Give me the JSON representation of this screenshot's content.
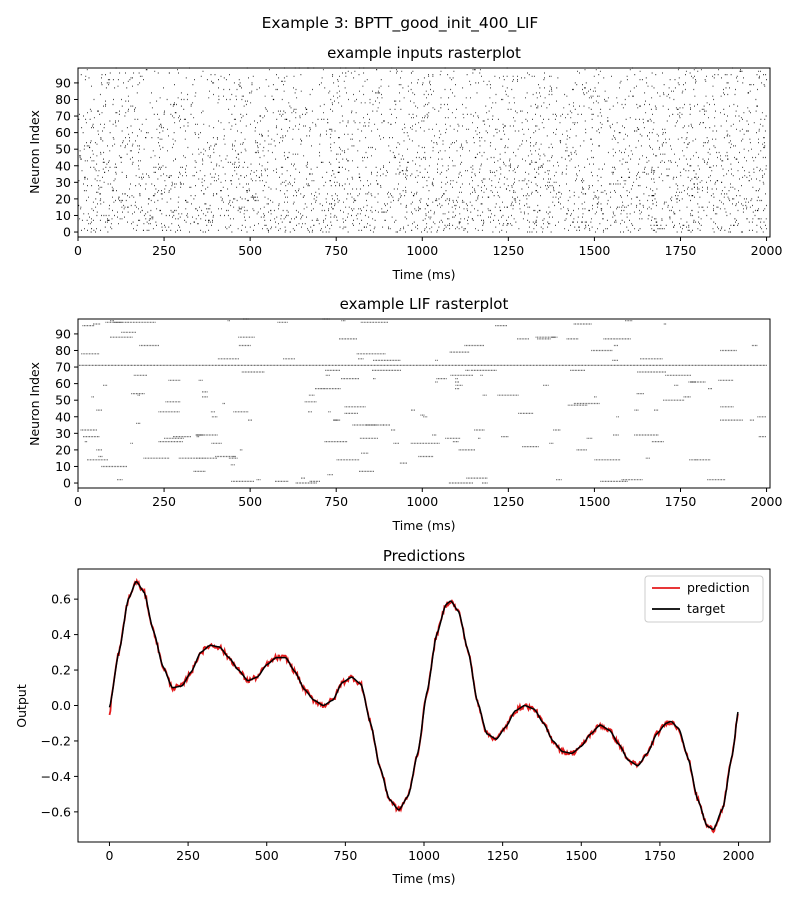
{
  "figure": {
    "suptitle": "Example 3: BPTT_good_init_400_LIF"
  },
  "chart_data": [
    {
      "type": "raster",
      "title": "example inputs rasterplot",
      "xlabel": "Time (ms)",
      "ylabel": "Neuron Index",
      "xlim": [
        0,
        2010
      ],
      "ylim": [
        -3,
        99
      ],
      "xticks": [
        0,
        250,
        500,
        750,
        1000,
        1250,
        1500,
        1750,
        2000
      ],
      "yticks": [
        0,
        10,
        20,
        30,
        40,
        50,
        60,
        70,
        80,
        90
      ],
      "neurons": 100,
      "description_of_marks": "random Poisson-like input spikes, density decreasing with neuron index",
      "mark_color": "#000000",
      "grid": false
    },
    {
      "type": "raster",
      "title": "example LIF rasterplot",
      "xlabel": "Time (ms)",
      "ylabel": "Neuron Index",
      "xlim": [
        0,
        2010
      ],
      "ylim": [
        -3,
        99
      ],
      "xticks": [
        0,
        250,
        500,
        750,
        1000,
        1250,
        1500,
        1750,
        2000
      ],
      "yticks": [
        0,
        10,
        20,
        30,
        40,
        50,
        60,
        70,
        80,
        90
      ],
      "neurons": 100,
      "continuous_neuron": 71,
      "mark_color": "#555555",
      "grid": false
    },
    {
      "type": "line",
      "title": "Predictions",
      "xlabel": "Time (ms)",
      "ylabel": "Output",
      "xlim": [
        -100,
        2100
      ],
      "ylim": [
        -0.77,
        0.77
      ],
      "xticks": [
        0,
        250,
        500,
        750,
        1000,
        1250,
        1500,
        1750,
        2000
      ],
      "yticks": [
        -0.6,
        -0.4,
        -0.2,
        0.0,
        0.2,
        0.4,
        0.6
      ],
      "ytick_labels": [
        "−0.6",
        "−0.4",
        "−0.2",
        "0.0",
        "0.2",
        "0.4",
        "0.6"
      ],
      "legend": "top-right",
      "grid": false,
      "series": [
        {
          "name": "prediction",
          "color": "#e41a1c"
        },
        {
          "name": "target",
          "color": "#000000"
        }
      ],
      "target_points": [
        [
          0,
          -0.01
        ],
        [
          30,
          0.3
        ],
        [
          60,
          0.6
        ],
        [
          85,
          0.7
        ],
        [
          110,
          0.64
        ],
        [
          140,
          0.42
        ],
        [
          170,
          0.22
        ],
        [
          200,
          0.1
        ],
        [
          230,
          0.11
        ],
        [
          260,
          0.19
        ],
        [
          290,
          0.3
        ],
        [
          320,
          0.34
        ],
        [
          350,
          0.33
        ],
        [
          380,
          0.27
        ],
        [
          410,
          0.2
        ],
        [
          440,
          0.14
        ],
        [
          470,
          0.16
        ],
        [
          500,
          0.23
        ],
        [
          530,
          0.27
        ],
        [
          560,
          0.27
        ],
        [
          590,
          0.19
        ],
        [
          620,
          0.09
        ],
        [
          650,
          0.03
        ],
        [
          680,
          0.0
        ],
        [
          710,
          0.03
        ],
        [
          740,
          0.13
        ],
        [
          770,
          0.16
        ],
        [
          800,
          0.12
        ],
        [
          830,
          -0.1
        ],
        [
          860,
          -0.35
        ],
        [
          890,
          -0.53
        ],
        [
          920,
          -0.59
        ],
        [
          950,
          -0.51
        ],
        [
          980,
          -0.27
        ],
        [
          1010,
          0.08
        ],
        [
          1040,
          0.4
        ],
        [
          1070,
          0.57
        ],
        [
          1085,
          0.59
        ],
        [
          1110,
          0.53
        ],
        [
          1140,
          0.31
        ],
        [
          1170,
          0.02
        ],
        [
          1200,
          -0.16
        ],
        [
          1230,
          -0.19
        ],
        [
          1260,
          -0.12
        ],
        [
          1290,
          -0.03
        ],
        [
          1320,
          0.0
        ],
        [
          1350,
          -0.02
        ],
        [
          1380,
          -0.1
        ],
        [
          1410,
          -0.2
        ],
        [
          1440,
          -0.26
        ],
        [
          1470,
          -0.27
        ],
        [
          1500,
          -0.23
        ],
        [
          1530,
          -0.16
        ],
        [
          1560,
          -0.11
        ],
        [
          1590,
          -0.14
        ],
        [
          1620,
          -0.22
        ],
        [
          1650,
          -0.31
        ],
        [
          1680,
          -0.34
        ],
        [
          1710,
          -0.27
        ],
        [
          1740,
          -0.16
        ],
        [
          1770,
          -0.1
        ],
        [
          1785,
          -0.09
        ],
        [
          1810,
          -0.13
        ],
        [
          1840,
          -0.3
        ],
        [
          1870,
          -0.53
        ],
        [
          1900,
          -0.68
        ],
        [
          1920,
          -0.7
        ],
        [
          1950,
          -0.58
        ],
        [
          1980,
          -0.28
        ],
        [
          2000,
          -0.02
        ]
      ]
    }
  ]
}
